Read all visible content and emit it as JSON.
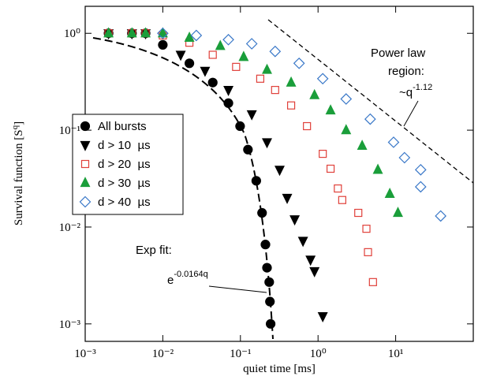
{
  "chart_data": {
    "type": "scatter",
    "x_label": "quiet time [ms]",
    "y_label": {
      "text": "Survival function [S",
      "sup": "q",
      "end": "]"
    },
    "log_x": true,
    "log_y": true,
    "xlim": [
      0.001,
      100
    ],
    "ylim": [
      0.00066,
      1.9
    ],
    "xticks": [
      {
        "value": 0.001,
        "label": "10⁻³"
      },
      {
        "value": 0.01,
        "label": "10⁻²"
      },
      {
        "value": 0.1,
        "label": "10⁻¹"
      },
      {
        "value": 1,
        "label": "10⁰"
      },
      {
        "value": 10,
        "label": "10¹"
      }
    ],
    "yticks": [
      {
        "value": 0.001,
        "label": "10⁻³"
      },
      {
        "value": 0.01,
        "label": "10⁻²"
      },
      {
        "value": 0.1,
        "label": "10⁻¹"
      },
      {
        "value": 1,
        "label": "10⁰"
      }
    ],
    "legend": "center left",
    "annotations": [
      {
        "text": "Power law"
      },
      {
        "text": "region:"
      },
      {
        "text": "~q",
        "sup": "-1.12"
      },
      {
        "text": "Exp fit:"
      },
      {
        "text": "e",
        "sup": "-0.0164q"
      }
    ],
    "series": [
      {
        "name": "All bursts",
        "color": "#000000",
        "marker": "circle",
        "filled": true,
        "x": [
          0.002,
          0.004,
          0.006,
          0.01,
          0.022,
          0.044,
          0.07,
          0.099,
          0.125,
          0.16,
          0.19,
          0.21,
          0.22,
          0.235,
          0.24,
          0.245
        ],
        "values": [
          1.0,
          1.0,
          1.0,
          0.76,
          0.49,
          0.31,
          0.19,
          0.11,
          0.063,
          0.03,
          0.014,
          0.0066,
          0.0038,
          0.0027,
          0.0017,
          0.001
        ]
      },
      {
        "name": "d > 10  µs",
        "color": "#000000",
        "marker": "triangle-down",
        "filled": true,
        "x": [
          0.002,
          0.004,
          0.006,
          0.017,
          0.035,
          0.07,
          0.14,
          0.22,
          0.32,
          0.4,
          0.5,
          0.64,
          0.8,
          0.9,
          1.15
        ],
        "values": [
          1.0,
          1.0,
          1.0,
          0.6,
          0.41,
          0.26,
          0.146,
          0.075,
          0.039,
          0.02,
          0.012,
          0.0072,
          0.0046,
          0.0035,
          0.0012
        ]
      },
      {
        "name": "d > 20  µs",
        "color": "#e0403a",
        "marker": "square",
        "filled": false,
        "x": [
          0.002,
          0.004,
          0.006,
          0.01,
          0.022,
          0.044,
          0.088,
          0.18,
          0.28,
          0.45,
          0.72,
          1.15,
          1.45,
          1.8,
          2.05,
          3.3,
          4.2,
          4.4,
          5.1
        ],
        "values": [
          1.0,
          1.0,
          1.0,
          0.95,
          0.8,
          0.6,
          0.45,
          0.34,
          0.26,
          0.18,
          0.11,
          0.057,
          0.04,
          0.025,
          0.019,
          0.014,
          0.0096,
          0.0055,
          0.0027
        ]
      },
      {
        "name": "d > 30  µs",
        "color": "#1a9e3a",
        "marker": "triangle-up",
        "filled": true,
        "x": [
          0.002,
          0.004,
          0.006,
          0.01,
          0.022,
          0.055,
          0.11,
          0.22,
          0.45,
          0.9,
          1.45,
          2.3,
          3.7,
          5.9,
          8.4,
          10.7
        ],
        "values": [
          1.0,
          1.0,
          1.0,
          1.0,
          0.9,
          0.74,
          0.57,
          0.42,
          0.31,
          0.23,
          0.16,
          0.1,
          0.069,
          0.039,
          0.022,
          0.014
        ]
      },
      {
        "name": "d > 40  µs",
        "color": "#3a78c8",
        "marker": "diamond",
        "filled": false,
        "x": [
          0.01,
          0.027,
          0.07,
          0.14,
          0.28,
          0.57,
          1.15,
          2.3,
          4.7,
          9.4,
          13,
          21,
          21,
          38
        ],
        "values": [
          1.0,
          0.95,
          0.86,
          0.78,
          0.65,
          0.49,
          0.34,
          0.21,
          0.13,
          0.075,
          0.052,
          0.039,
          0.026,
          0.013
        ]
      }
    ]
  }
}
